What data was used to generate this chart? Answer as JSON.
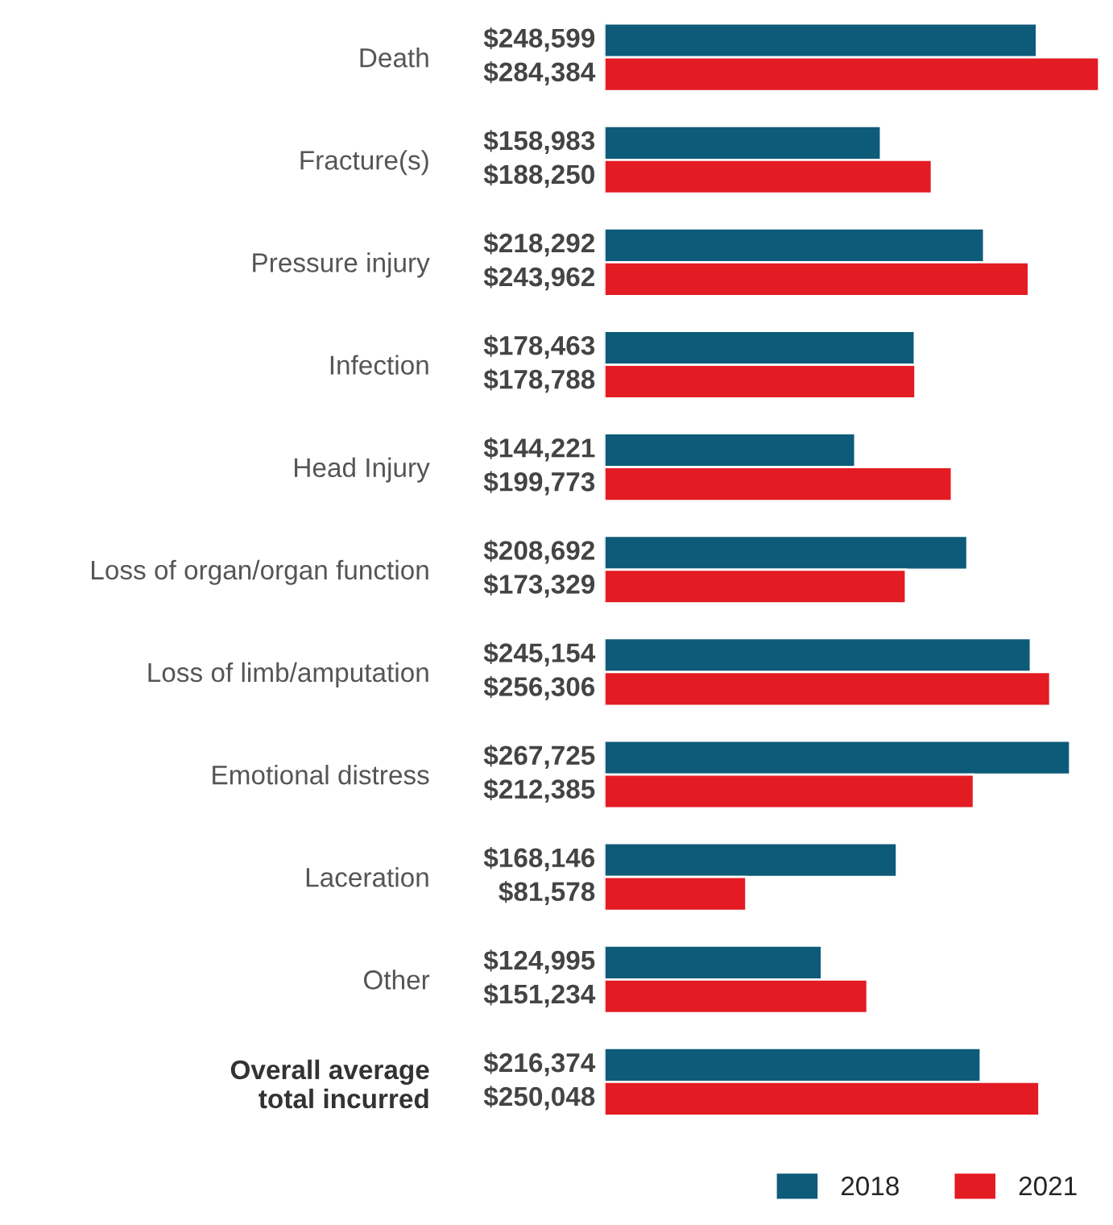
{
  "chart_data": {
    "type": "bar",
    "orientation": "horizontal",
    "categories": [
      "Death",
      "Fracture(s)",
      "Pressure injury",
      "Infection",
      "Head Injury",
      "Loss of organ/organ function",
      "Loss of limb/amputation",
      "Emotional distress",
      "Laceration",
      "Other",
      "Overall average\ntotal incurred"
    ],
    "series": [
      {
        "name": "2018",
        "color": "#0d5b79",
        "values": [
          248599,
          158983,
          218292,
          178463,
          144221,
          208692,
          245154,
          267725,
          168146,
          124995,
          216374
        ],
        "value_labels": [
          "$248,599",
          "$158,983",
          "$218,292",
          "$178,463",
          "$144,221",
          "$208,692",
          "$245,154",
          "$267,725",
          "$168,146",
          "$124,995",
          "$216,374"
        ]
      },
      {
        "name": "2021",
        "color": "#e31b23",
        "values": [
          284384,
          188250,
          243962,
          178788,
          199773,
          173329,
          256306,
          212385,
          81578,
          151234,
          250048
        ],
        "value_labels": [
          "$284,384",
          "$188,250",
          "$243,962",
          "$178,788",
          "$199,773",
          "$173,329",
          "$256,306",
          "$212,385",
          "$81,578",
          "$151,234",
          "$250,048"
        ]
      }
    ],
    "xlim": [
      0,
      286000
    ],
    "grid": false,
    "legend": "bottom right"
  }
}
